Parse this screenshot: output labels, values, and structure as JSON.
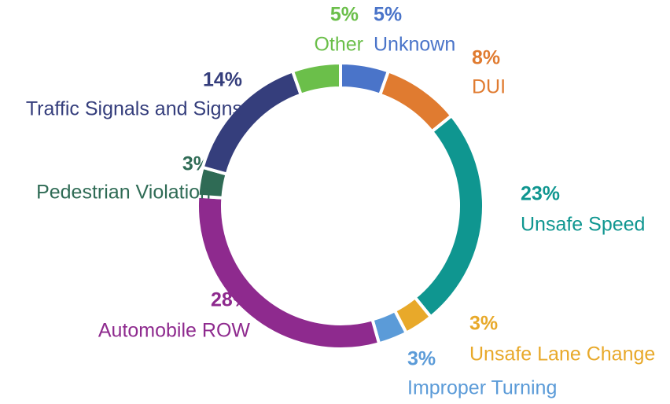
{
  "chart_data": {
    "type": "donut",
    "categories": [
      "Unknown",
      "DUI",
      "Unsafe Speed",
      "Unsafe Lane Change",
      "Improper Turning",
      "Automobile ROW",
      "Pedestrian Violation",
      "Traffic Signals and Signs",
      "Other"
    ],
    "values": [
      5,
      8,
      23,
      3,
      3,
      28,
      3,
      14,
      5
    ],
    "value_labels": [
      "5%",
      "8%",
      "23%",
      "3%",
      "3%",
      "28%",
      "3%",
      "14%",
      "5%"
    ],
    "colors": [
      "#4a74c9",
      "#e07b30",
      "#0f9690",
      "#e8a92a",
      "#5b9bd8",
      "#8e2a8e",
      "#2f6b55",
      "#353e7c",
      "#6bbf4a"
    ]
  }
}
